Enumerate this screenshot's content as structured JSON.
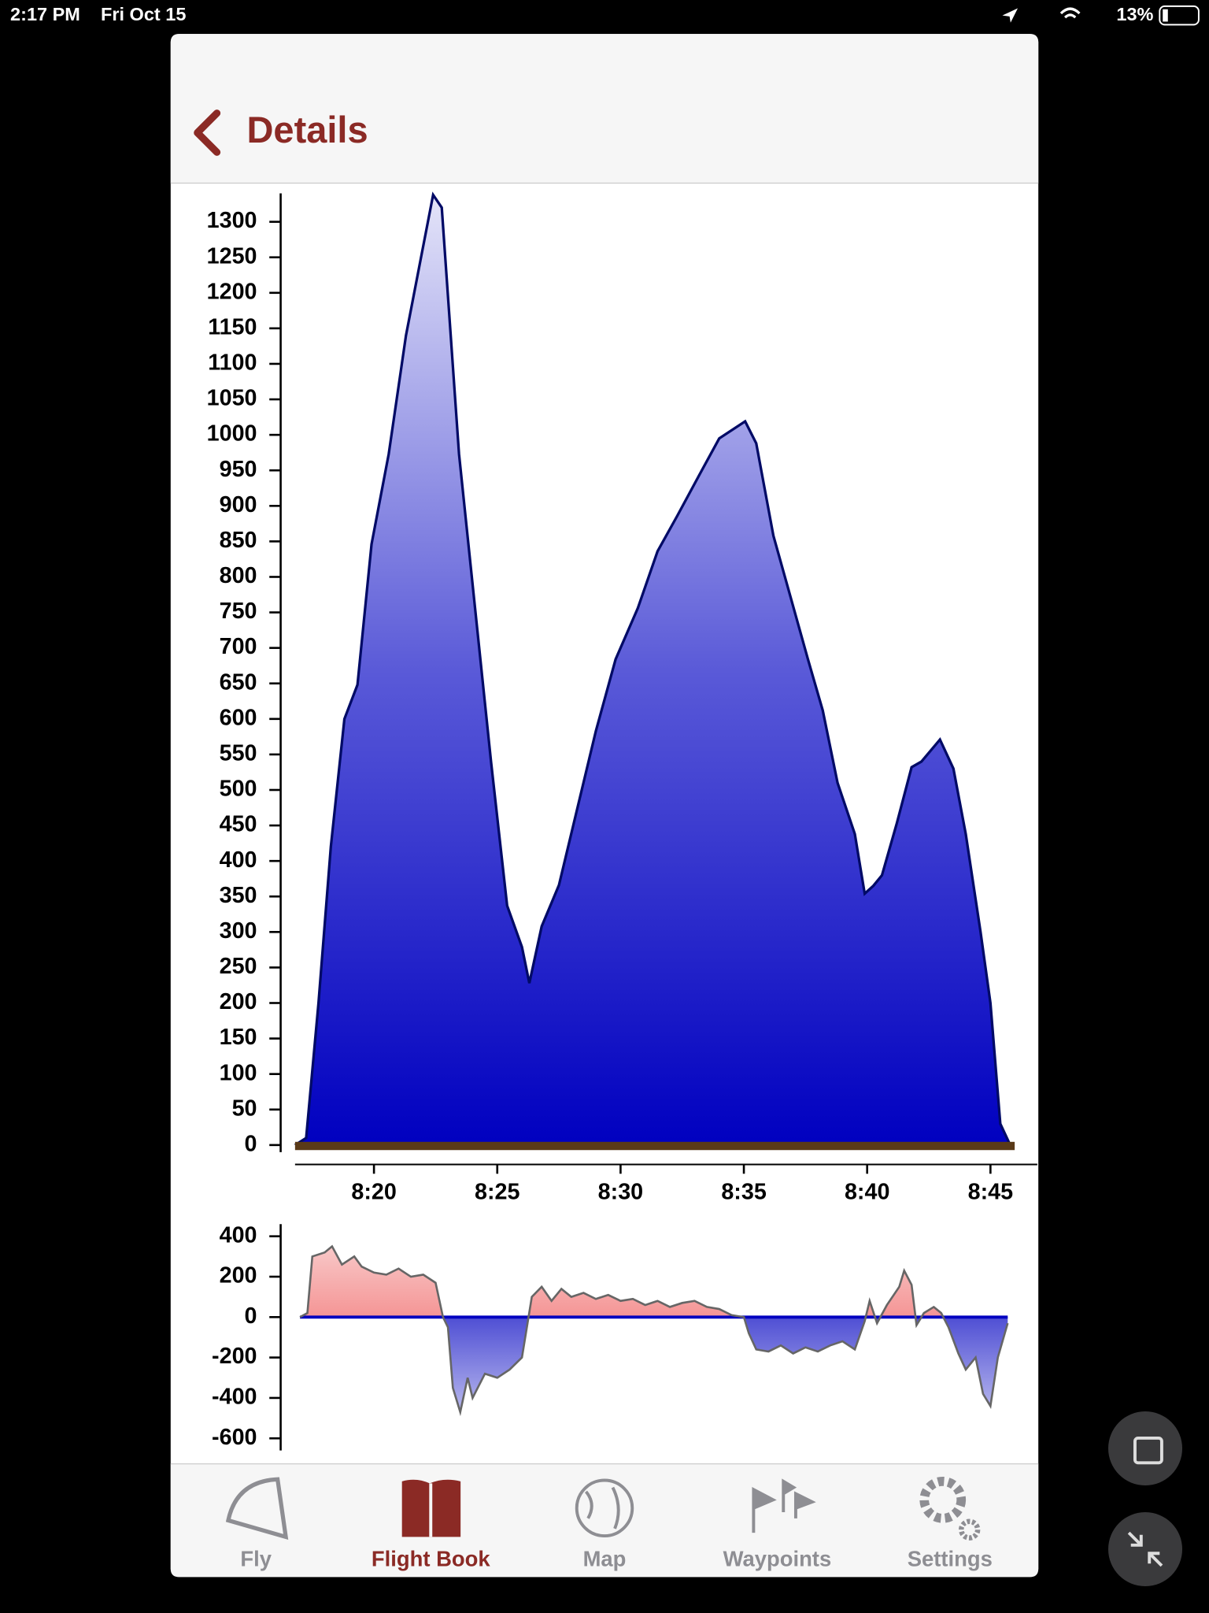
{
  "status_bar": {
    "time": "2:17 PM",
    "date": "Fri Oct 15",
    "battery": "13%"
  },
  "nav": {
    "title": "Details"
  },
  "chart_data": [
    {
      "type": "area",
      "color": "#0000c0",
      "x": [
        16.8,
        17.25,
        17.75,
        18.25,
        18.8,
        19.33,
        19.9,
        20.6,
        21.3,
        21.9,
        22.4,
        22.75,
        23.45,
        24.1,
        24.75,
        25.4,
        26.0,
        26.3,
        26.8,
        27.5,
        28.2,
        29.0,
        29.8,
        30.7,
        31.5,
        32.3,
        33.2,
        34.0,
        35.05,
        35.5,
        36.2,
        36.9,
        37.6,
        38.2,
        38.8,
        39.5,
        39.9,
        40.25,
        40.6,
        41.2,
        41.8,
        42.2,
        42.95,
        43.5,
        44.0,
        44.6,
        45.0,
        45.4,
        45.8
      ],
      "values": [
        0,
        10,
        200,
        420,
        600,
        648,
        846,
        973,
        1140,
        1248,
        1338,
        1320,
        973,
        756,
        539,
        337,
        279,
        228,
        308,
        366,
        467,
        583,
        684,
        756,
        836,
        886,
        944,
        995,
        1019,
        988,
        858,
        771,
        684,
        612,
        510,
        438,
        354,
        365,
        380,
        453,
        532,
        540,
        571,
        530,
        438,
        300,
        200,
        30,
        0
      ],
      "xlim": [
        16.8,
        46.9
      ],
      "ylim": [
        -10,
        1340
      ],
      "xticks": [
        {
          "value": 20,
          "label": "8:20"
        },
        {
          "value": 25,
          "label": "8:25"
        },
        {
          "value": 30,
          "label": "8:30"
        },
        {
          "value": 35,
          "label": "8:35"
        },
        {
          "value": 40,
          "label": "8:40"
        },
        {
          "value": 45,
          "label": "8:45"
        }
      ],
      "yticks": [
        0,
        50,
        100,
        150,
        200,
        250,
        300,
        350,
        400,
        450,
        500,
        550,
        600,
        650,
        700,
        750,
        800,
        850,
        900,
        950,
        1000,
        1050,
        1100,
        1150,
        1200,
        1250,
        1300
      ]
    },
    {
      "type": "vario",
      "positive_color": "#f05050",
      "negative_color": "#0000c0",
      "x": [
        17.0,
        17.3,
        17.5,
        18.0,
        18.3,
        18.7,
        19.2,
        19.5,
        20.0,
        20.5,
        21.0,
        21.5,
        22.0,
        22.5,
        22.8,
        23.0,
        23.2,
        23.5,
        23.8,
        24.0,
        24.5,
        25.0,
        25.5,
        26.0,
        26.2,
        26.4,
        26.8,
        27.2,
        27.6,
        28.0,
        28.5,
        29.0,
        29.5,
        30.0,
        30.5,
        31.0,
        31.5,
        32.0,
        32.5,
        33.0,
        33.5,
        34.0,
        34.5,
        35.0,
        35.2,
        35.5,
        36.0,
        36.5,
        37.0,
        37.5,
        38.0,
        38.5,
        39.0,
        39.5,
        39.9,
        40.1,
        40.4,
        40.8,
        41.3,
        41.5,
        41.8,
        42.0,
        42.3,
        42.7,
        43.0,
        43.3,
        43.7,
        44.0,
        44.4,
        44.7,
        45.0,
        45.3,
        45.7
      ],
      "values": [
        0,
        20,
        300,
        320,
        350,
        260,
        300,
        250,
        220,
        210,
        240,
        200,
        210,
        170,
        0,
        -50,
        -350,
        -470,
        -300,
        -400,
        -280,
        -300,
        -260,
        -200,
        -50,
        100,
        150,
        80,
        140,
        100,
        120,
        90,
        110,
        80,
        90,
        60,
        80,
        50,
        70,
        80,
        50,
        40,
        10,
        0,
        -80,
        -160,
        -170,
        -140,
        -180,
        -150,
        -170,
        -140,
        -120,
        -160,
        -20,
        80,
        -30,
        60,
        150,
        230,
        160,
        -40,
        20,
        50,
        20,
        -50,
        -180,
        -260,
        -200,
        -380,
        -440,
        -200,
        -30
      ],
      "xlim": [
        16.8,
        46.9
      ],
      "ylim": [
        -660,
        460
      ],
      "yticks": [
        400,
        200,
        0,
        -200,
        -400,
        -600
      ]
    }
  ],
  "tab_bar": {
    "items": [
      "Fly",
      "Flight Book",
      "Map",
      "Waypoints",
      "Settings"
    ]
  }
}
